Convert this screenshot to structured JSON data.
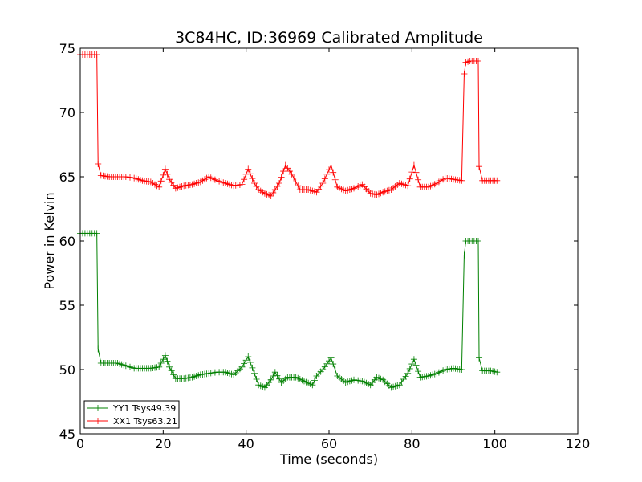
{
  "chart_data": {
    "type": "line",
    "title": "3C84HC, ID:36969 Calibrated Amplitude",
    "xlabel": "Time (seconds)",
    "ylabel": "Power in Kelvin",
    "xlim": [
      0,
      120
    ],
    "ylim": [
      45,
      75
    ],
    "xticks": [
      0,
      20,
      40,
      60,
      80,
      100,
      120
    ],
    "yticks": [
      45,
      50,
      55,
      60,
      65,
      70,
      75
    ],
    "grid": false,
    "legend_position": "lower-left",
    "marker": "+",
    "series": [
      {
        "name": "YY1 Tsys49.39",
        "color": "#008000",
        "x": [
          0,
          4,
          4.3,
          5,
          7,
          9,
          11,
          13,
          15,
          17,
          19,
          20.5,
          21.5,
          23,
          25,
          27,
          29,
          31,
          33,
          35,
          37,
          39,
          40.5,
          42,
          43,
          44.5,
          46,
          47,
          48.5,
          50,
          52,
          54,
          56,
          57,
          58.5,
          60.5,
          62,
          64,
          66,
          68,
          70,
          71.5,
          73,
          75,
          77,
          79,
          80.5,
          82,
          84,
          86,
          88,
          90,
          92,
          92.6,
          93,
          94,
          96,
          96.2,
          97,
          99,
          100.5
        ],
        "y": [
          60.6,
          60.6,
          51.6,
          50.5,
          50.5,
          50.5,
          50.3,
          50.1,
          50.1,
          50.1,
          50.2,
          51.1,
          50.2,
          49.3,
          49.3,
          49.4,
          49.6,
          49.7,
          49.8,
          49.8,
          49.6,
          50.2,
          51.0,
          49.7,
          48.8,
          48.6,
          49.2,
          49.8,
          49.0,
          49.4,
          49.4,
          49.1,
          48.8,
          49.5,
          50.0,
          50.9,
          49.5,
          49.0,
          49.2,
          49.1,
          48.8,
          49.4,
          49.2,
          48.6,
          48.8,
          49.7,
          50.8,
          49.4,
          49.5,
          49.7,
          50.0,
          50.1,
          50.0,
          58.9,
          60.0,
          60.0,
          60.0,
          50.9,
          49.9,
          49.9,
          49.8
        ]
      },
      {
        "name": "XX1 Tsys63.21",
        "color": "#ff0000",
        "x": [
          0,
          4,
          4.3,
          5,
          7,
          9,
          11,
          13,
          15,
          17,
          19,
          20.5,
          21.5,
          23,
          25,
          27,
          29,
          31,
          33,
          35,
          37,
          39,
          40.5,
          42,
          43,
          44.5,
          46,
          48,
          49.5,
          51,
          53,
          55,
          57,
          58.5,
          60.5,
          62,
          64,
          66,
          68,
          70,
          71.5,
          73,
          75,
          77,
          79,
          80.5,
          82,
          84,
          86,
          88,
          90,
          92,
          92.6,
          93,
          94,
          96,
          96.2,
          97,
          99,
          100.5
        ],
        "y": [
          74.5,
          74.5,
          66.0,
          65.1,
          65.0,
          65.0,
          65.0,
          64.9,
          64.7,
          64.6,
          64.2,
          65.6,
          64.8,
          64.1,
          64.3,
          64.4,
          64.6,
          65.0,
          64.7,
          64.5,
          64.3,
          64.4,
          65.6,
          64.5,
          64.0,
          63.7,
          63.5,
          64.5,
          65.9,
          65.2,
          64.0,
          64.0,
          63.8,
          64.5,
          65.9,
          64.2,
          63.9,
          64.1,
          64.4,
          63.7,
          63.6,
          63.8,
          64.0,
          64.5,
          64.3,
          65.9,
          64.2,
          64.2,
          64.5,
          64.9,
          64.8,
          64.7,
          73.0,
          73.9,
          74.0,
          74.0,
          65.8,
          64.7,
          64.7,
          64.7
        ]
      }
    ]
  }
}
